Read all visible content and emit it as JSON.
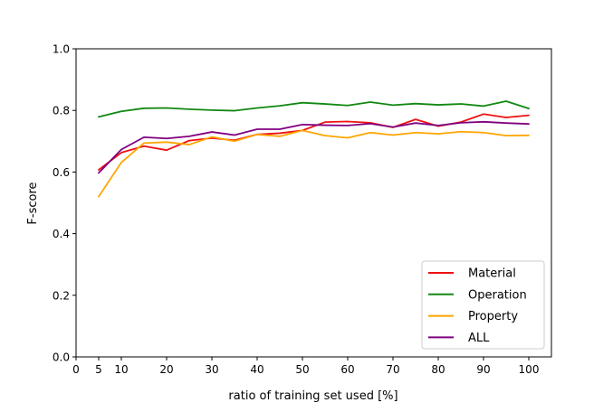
{
  "chart_data": {
    "type": "line",
    "title": "",
    "xlabel": "ratio of training set used [%]",
    "ylabel": "F-score",
    "xlim": [
      0,
      105
    ],
    "ylim": [
      0.0,
      1.0
    ],
    "xticks": [
      0,
      5,
      10,
      20,
      30,
      40,
      50,
      60,
      70,
      80,
      90,
      100
    ],
    "yticks": [
      0.0,
      0.2,
      0.4,
      0.6,
      0.8,
      1.0
    ],
    "ytick_labels": [
      "0.0",
      "0.2",
      "0.4",
      "0.6",
      "0.8",
      "1.0"
    ],
    "grid": false,
    "legend_position": "bottom-right",
    "x": [
      5,
      10,
      15,
      20,
      25,
      30,
      35,
      40,
      45,
      50,
      55,
      60,
      65,
      70,
      75,
      80,
      85,
      90,
      95,
      100
    ],
    "series": [
      {
        "name": "Material",
        "color": "#ee1111",
        "values": [
          0.607,
          0.663,
          0.684,
          0.671,
          0.702,
          0.71,
          0.703,
          0.722,
          0.726,
          0.735,
          0.762,
          0.764,
          0.76,
          0.745,
          0.771,
          0.749,
          0.762,
          0.788,
          0.777,
          0.784
        ]
      },
      {
        "name": "Operation",
        "color": "#118811",
        "values": [
          0.779,
          0.797,
          0.807,
          0.808,
          0.804,
          0.801,
          0.799,
          0.808,
          0.815,
          0.825,
          0.821,
          0.816,
          0.827,
          0.817,
          0.822,
          0.818,
          0.821,
          0.814,
          0.83,
          0.806
        ]
      },
      {
        "name": "Property",
        "color": "#ffa500",
        "values": [
          0.52,
          0.631,
          0.694,
          0.697,
          0.689,
          0.714,
          0.7,
          0.722,
          0.716,
          0.735,
          0.718,
          0.711,
          0.728,
          0.72,
          0.728,
          0.724,
          0.731,
          0.728,
          0.718,
          0.719
        ]
      },
      {
        "name": "ALL",
        "color": "#800080",
        "values": [
          0.597,
          0.673,
          0.713,
          0.709,
          0.716,
          0.73,
          0.72,
          0.739,
          0.739,
          0.754,
          0.752,
          0.751,
          0.757,
          0.746,
          0.759,
          0.751,
          0.76,
          0.763,
          0.759,
          0.756
        ]
      }
    ]
  }
}
